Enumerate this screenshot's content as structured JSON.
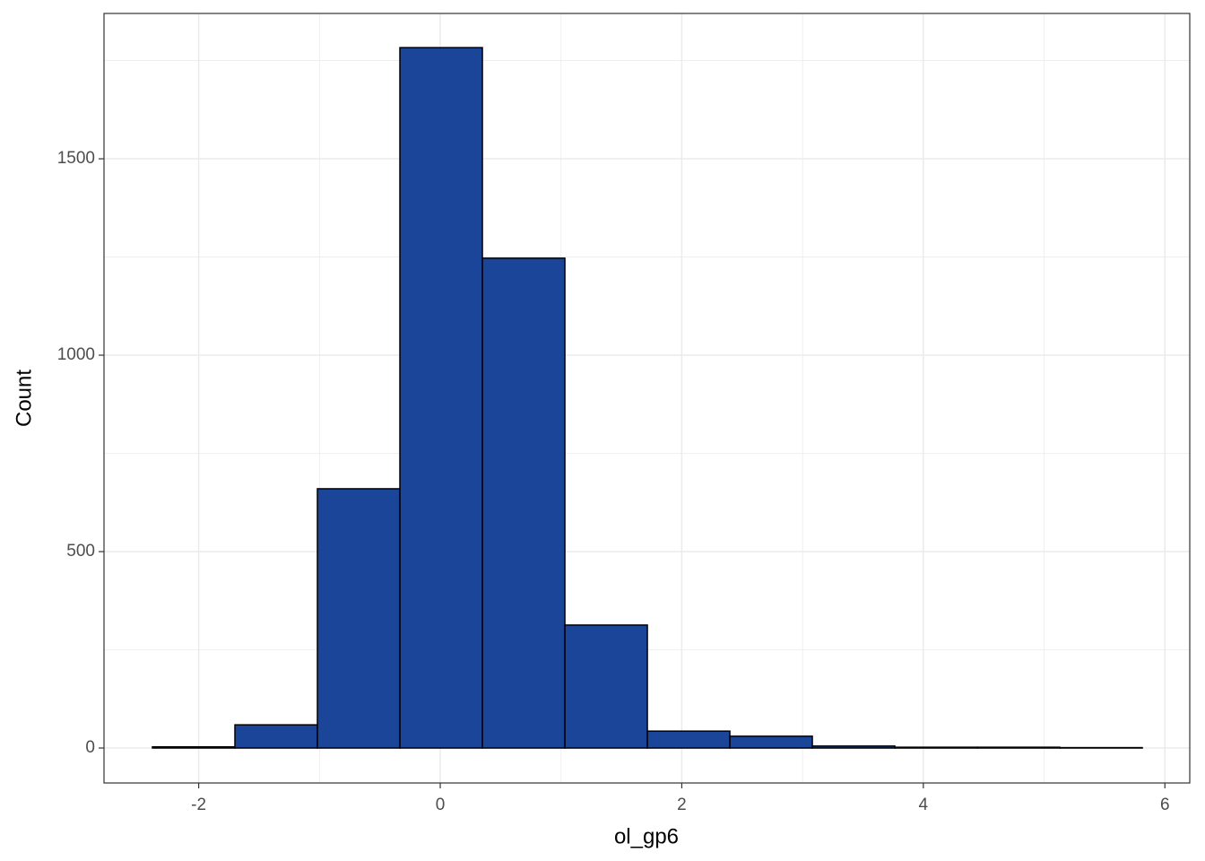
{
  "chart_data": {
    "type": "histogram",
    "x_label": "ol_gp6",
    "y_label": "Count",
    "bins": [
      -2.383,
      -1.7,
      -1.017,
      -0.334,
      0.349,
      1.032,
      1.715,
      2.398,
      3.081,
      3.764,
      4.447,
      5.13,
      5.813
    ],
    "values": [
      3,
      59,
      660,
      1783,
      1247,
      313,
      43,
      30,
      5,
      2,
      2,
      1
    ],
    "color": "#1a4599",
    "edge_color": "#000000",
    "xlim": [
      -2.784,
      6.206
    ],
    "xticks": [
      -2,
      0,
      2,
      4,
      6
    ],
    "x_minor_grid": [
      -1,
      1,
      3,
      5
    ],
    "ylim": [
      -89,
      1870
    ],
    "yticks": [
      0,
      500,
      1000,
      1500
    ],
    "y_minor_grid": [
      250,
      750,
      1250,
      1750
    ],
    "grid": true
  }
}
